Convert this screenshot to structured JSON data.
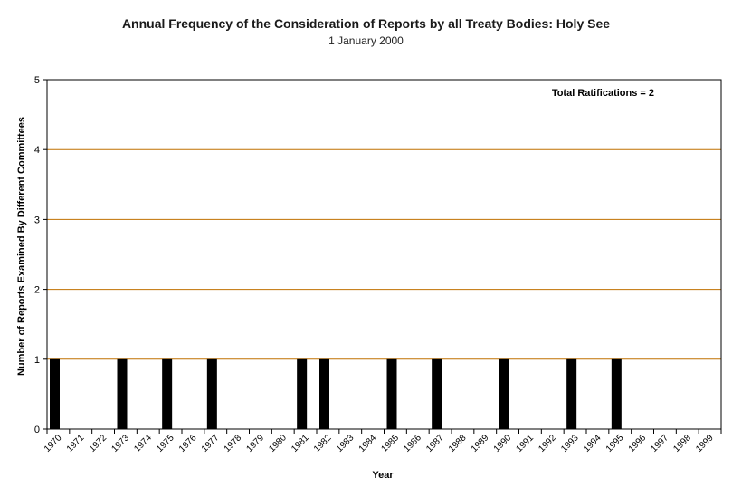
{
  "chart_data": {
    "type": "bar",
    "title": "Annual Frequency of the Consideration of Reports by all Treaty Bodies: Holy See",
    "subtitle": "1 January 2000",
    "xlabel": "Year",
    "ylabel": "Number of Reports Examined By Different Committees",
    "annotation": "Total Ratifications = 2",
    "ylim": [
      0,
      5
    ],
    "yticks": [
      "0",
      "1",
      "2",
      "3",
      "4",
      "5"
    ],
    "categories": [
      "1970",
      "1971",
      "1972",
      "1973",
      "1974",
      "1975",
      "1976",
      "1977",
      "1978",
      "1979",
      "1980",
      "1981",
      "1982",
      "1983",
      "1984",
      "1985",
      "1986",
      "1987",
      "1988",
      "1989",
      "1990",
      "1991",
      "1992",
      "1993",
      "1994",
      "1995",
      "1996",
      "1997",
      "1998",
      "1999"
    ],
    "values": [
      1,
      0,
      0,
      1,
      0,
      1,
      0,
      1,
      0,
      0,
      0,
      1,
      1,
      0,
      0,
      1,
      0,
      1,
      0,
      0,
      1,
      0,
      0,
      1,
      0,
      1,
      0,
      0,
      0,
      0
    ],
    "colors": {
      "bar": "#000000",
      "gridline": "#c07000",
      "frame": "#000000"
    },
    "grid": true
  }
}
